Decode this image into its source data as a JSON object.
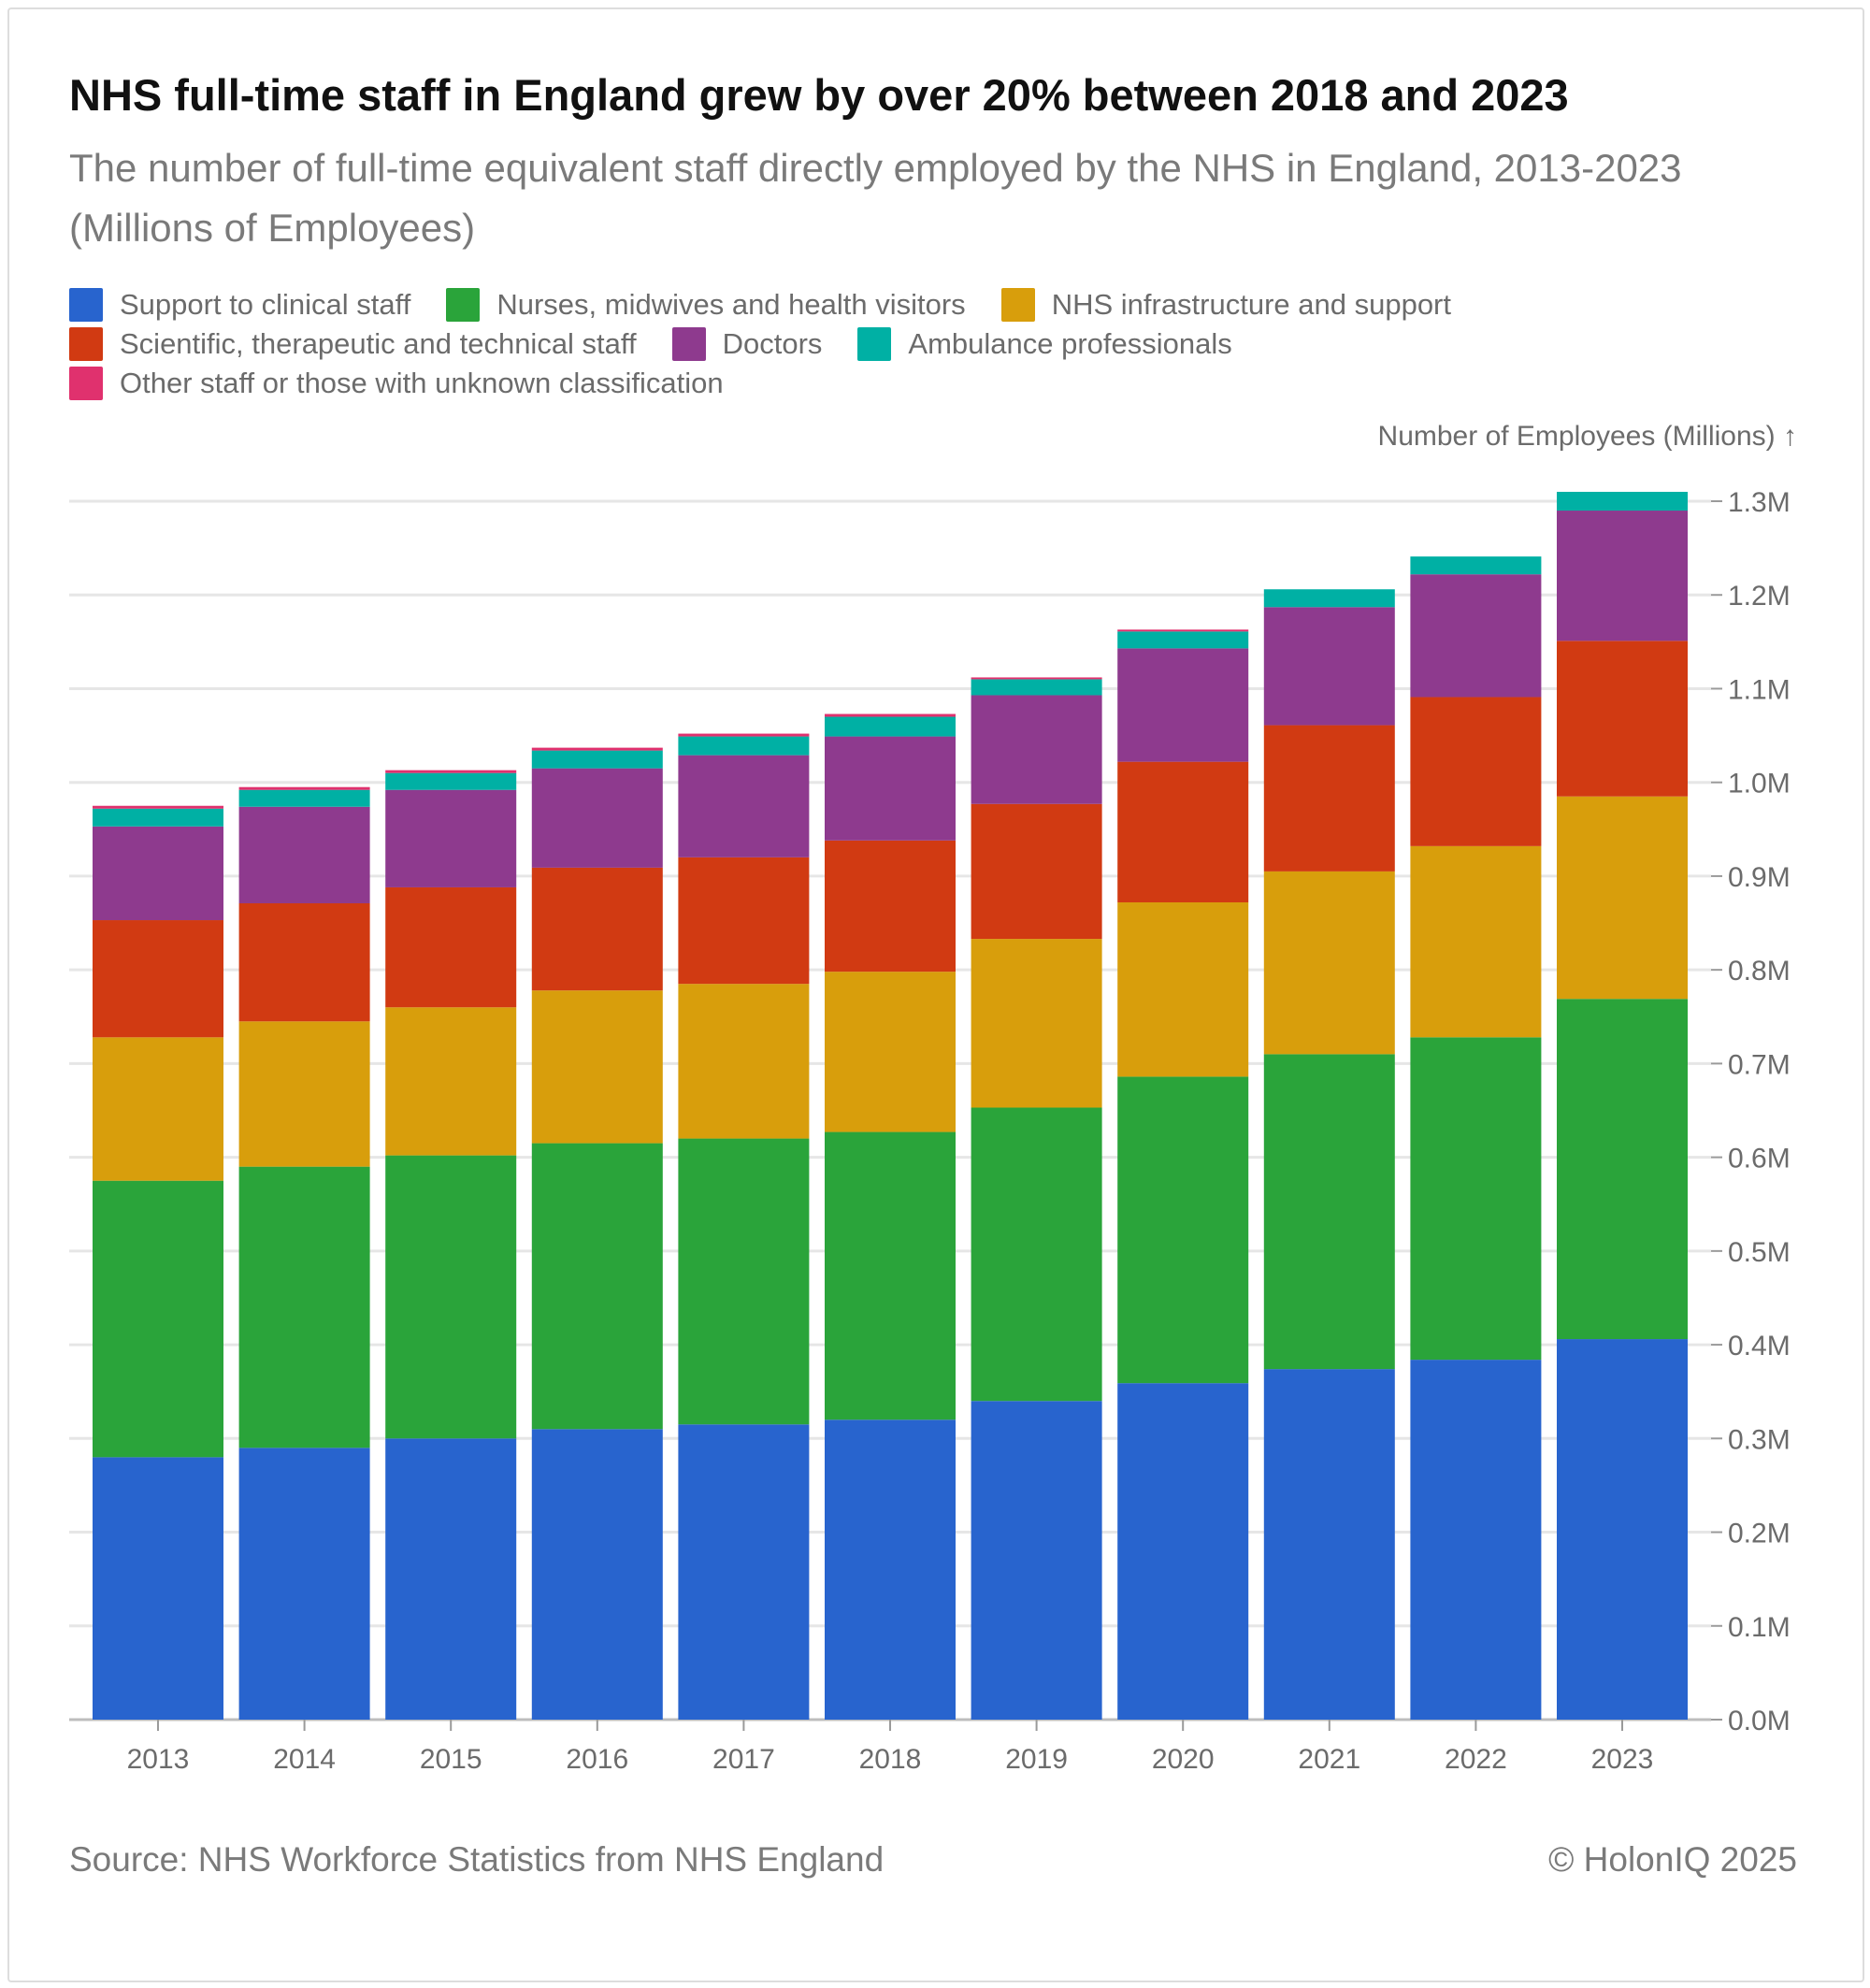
{
  "header": {
    "title": "NHS full-time staff in England grew by over 20% between 2018 and 2023",
    "subtitle": "The number of full-time equivalent staff directly employed by the NHS in England, 2013-2023 (Millions of Employees)"
  },
  "legend": [
    {
      "label": "Support to clinical staff",
      "color": "#2864CE"
    },
    {
      "label": "Nurses, midwives and health visitors",
      "color": "#2AA43A"
    },
    {
      "label": "NHS infrastructure and support",
      "color": "#D89E0C"
    },
    {
      "label": "Scientific, therapeutic and technical staff",
      "color": "#D13A12"
    },
    {
      "label": "Doctors",
      "color": "#8E3A8E"
    },
    {
      "label": "Ambulance professionals",
      "color": "#00B0A4"
    },
    {
      "label": "Other staff or those with unknown classification",
      "color": "#E0316E"
    }
  ],
  "footer": {
    "source": "Source: NHS Workforce Statistics from NHS England",
    "copyright": "© HolonIQ 2025"
  },
  "chart_data": {
    "type": "bar",
    "stacked": true,
    "title": "NHS full-time staff in England grew by over 20% between 2018 and 2023",
    "subtitle": "The number of full-time equivalent staff directly employed by the NHS in England, 2013-2023 (Millions of Employees)",
    "ylabel": "Number of Employees (Millions) ↑",
    "y_axis_position": "right",
    "ylim": [
      0,
      1.3
    ],
    "yticks": [
      0.0,
      0.1,
      0.2,
      0.3,
      0.4,
      0.5,
      0.6,
      0.7,
      0.8,
      0.9,
      1.0,
      1.1,
      1.2,
      1.3
    ],
    "ytick_labels": [
      "0.0M",
      "0.1M",
      "0.2M",
      "0.3M",
      "0.4M",
      "0.5M",
      "0.6M",
      "0.7M",
      "0.8M",
      "0.9M",
      "1.0M",
      "1.1M",
      "1.2M",
      "1.3M"
    ],
    "grid": true,
    "legend_position": "top-left",
    "categories": [
      "2013",
      "2014",
      "2015",
      "2016",
      "2017",
      "2018",
      "2019",
      "2020",
      "2021",
      "2022",
      "2023"
    ],
    "series": [
      {
        "name": "Support to clinical staff",
        "color": "#2864CE",
        "values": [
          0.28,
          0.29,
          0.3,
          0.31,
          0.315,
          0.32,
          0.34,
          0.359,
          0.374,
          0.384,
          0.406
        ]
      },
      {
        "name": "Nurses, midwives and health visitors",
        "color": "#2AA43A",
        "values": [
          0.295,
          0.3,
          0.302,
          0.305,
          0.305,
          0.307,
          0.313,
          0.327,
          0.336,
          0.344,
          0.363
        ]
      },
      {
        "name": "NHS infrastructure and support",
        "color": "#D89E0C",
        "values": [
          0.153,
          0.155,
          0.158,
          0.163,
          0.165,
          0.171,
          0.18,
          0.186,
          0.195,
          0.204,
          0.216
        ]
      },
      {
        "name": "Scientific, therapeutic and technical staff",
        "color": "#D13A12",
        "values": [
          0.125,
          0.126,
          0.128,
          0.131,
          0.135,
          0.14,
          0.144,
          0.15,
          0.156,
          0.159,
          0.166
        ]
      },
      {
        "name": "Doctors",
        "color": "#8E3A8E",
        "values": [
          0.1,
          0.103,
          0.104,
          0.106,
          0.109,
          0.111,
          0.116,
          0.121,
          0.126,
          0.131,
          0.139
        ]
      },
      {
        "name": "Ambulance professionals",
        "color": "#00B0A4",
        "values": [
          0.019,
          0.018,
          0.018,
          0.019,
          0.02,
          0.021,
          0.017,
          0.018,
          0.019,
          0.019,
          0.02
        ]
      },
      {
        "name": "Other staff or those with unknown classification",
        "color": "#E0316E",
        "values": [
          0.003,
          0.003,
          0.003,
          0.003,
          0.003,
          0.003,
          0.002,
          0.002,
          0.0,
          0.0,
          0.0
        ]
      }
    ]
  }
}
